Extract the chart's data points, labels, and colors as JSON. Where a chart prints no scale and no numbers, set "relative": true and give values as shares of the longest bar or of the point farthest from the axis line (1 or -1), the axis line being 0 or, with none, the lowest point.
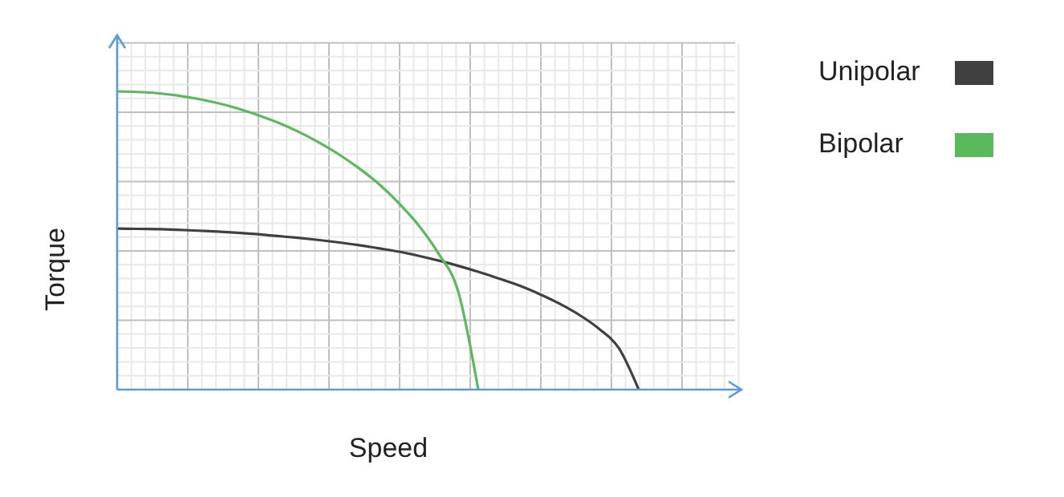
{
  "chart_data": {
    "type": "line",
    "relative": true,
    "xlabel": "Speed",
    "ylabel": "Torque",
    "grid": true,
    "legend": "right",
    "line_style": "solid",
    "categories": [
      null,
      null,
      null,
      null,
      null,
      null,
      null,
      null,
      null,
      null,
      null,
      null,
      null,
      null,
      null,
      null,
      null,
      null,
      null,
      null,
      null,
      null,
      null,
      null,
      null,
      null,
      null,
      null,
      null,
      null,
      null
    ],
    "series": [
      {
        "name": "Unipolar",
        "color": "#404040",
        "values": [
          0.54,
          0.539,
          0.538,
          0.536,
          0.533,
          0.53,
          0.526,
          0.521,
          0.515,
          0.509,
          0.502,
          0.494,
          0.485,
          0.474,
          0.463,
          0.449,
          0.433,
          0.415,
          0.395,
          0.373,
          0.35,
          0.322,
          0.29,
          0.252,
          0.205,
          0.14,
          0,
          null,
          null,
          null,
          null
        ]
      },
      {
        "name": "Bipolar",
        "color": "#5cb85c",
        "values": [
          1,
          0.998,
          0.994,
          0.986,
          0.975,
          0.961,
          0.943,
          0.921,
          0.896,
          0.866,
          0.831,
          0.791,
          0.745,
          0.692,
          0.628,
          0.553,
          0.458,
          0.329,
          0,
          null,
          null,
          null,
          null,
          null,
          null,
          null,
          null,
          null,
          null,
          null,
          null
        ]
      }
    ]
  }
}
